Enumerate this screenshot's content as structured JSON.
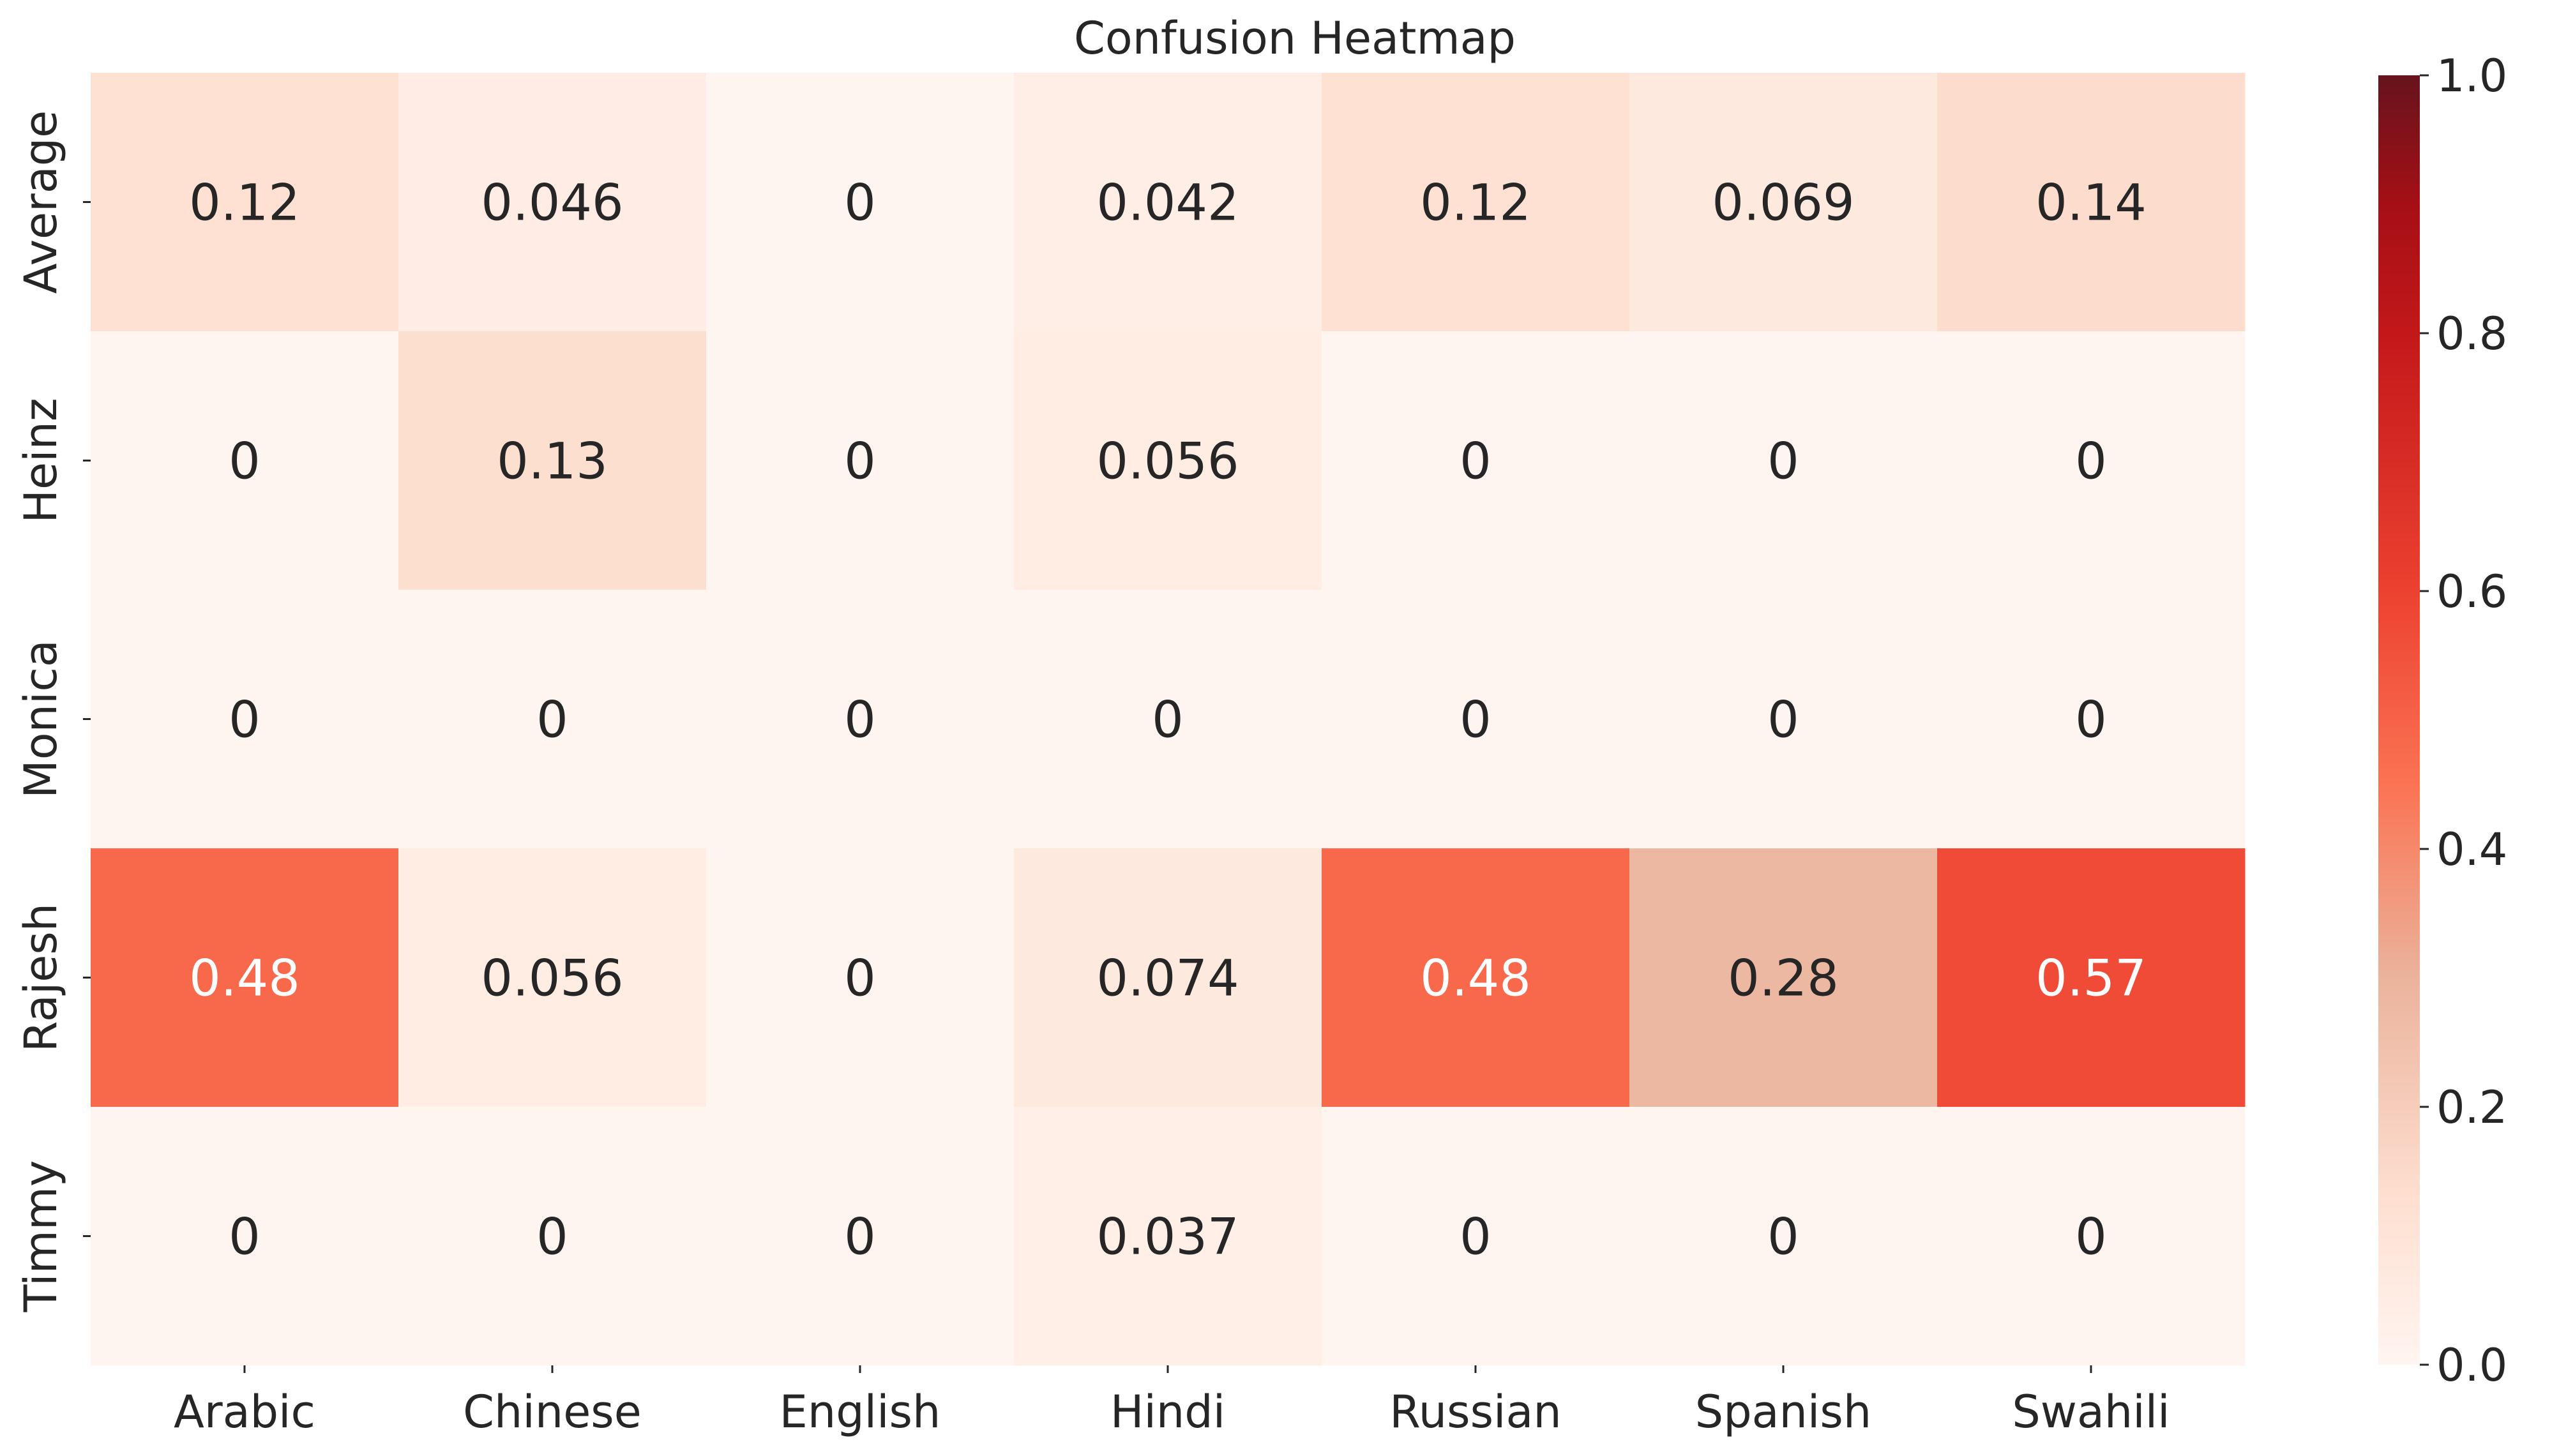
{
  "chart_data": {
    "type": "heatmap",
    "title": "Confusion Heatmap",
    "xlabel": "",
    "ylabel": "",
    "x_categories": [
      "Arabic",
      "Chinese",
      "English",
      "Hindi",
      "Russian",
      "Spanish",
      "Swahili"
    ],
    "y_categories": [
      "Average",
      "Heinz",
      "Monica",
      "Rajesh",
      "Timmy"
    ],
    "values": [
      [
        0.12,
        0.046,
        0,
        0.042,
        0.12,
        0.069,
        0.14
      ],
      [
        0,
        0.13,
        0,
        0.056,
        0,
        0,
        0
      ],
      [
        0,
        0,
        0,
        0,
        0,
        0,
        0
      ],
      [
        0.48,
        0.056,
        0,
        0.074,
        0.48,
        0.28,
        0.57
      ],
      [
        0,
        0,
        0,
        0.037,
        0,
        0,
        0
      ]
    ],
    "cell_labels": [
      [
        "0.12",
        "0.046",
        "0",
        "0.042",
        "0.12",
        "0.069",
        "0.14"
      ],
      [
        "0",
        "0.13",
        "0",
        "0.056",
        "0",
        "0",
        "0"
      ],
      [
        "0",
        "0",
        "0",
        "0",
        "0",
        "0",
        "0"
      ],
      [
        "0.48",
        "0.056",
        "0",
        "0.074",
        "0.48",
        "0.28",
        "0.57"
      ],
      [
        "0",
        "0",
        "0",
        "0.037",
        "0",
        "0",
        "0"
      ]
    ],
    "colorbar": {
      "vmin": 0.0,
      "vmax": 1.0,
      "ticks": [
        "0.0",
        "0.2",
        "0.4",
        "0.6",
        "0.8",
        "1.0"
      ],
      "tick_values": [
        0.0,
        0.2,
        0.4,
        0.6,
        0.8,
        1.0
      ],
      "colormap_stops": [
        {
          "v": 0.0,
          "color": "#fff5f0"
        },
        {
          "v": 0.125,
          "color": "#fee0d2"
        },
        {
          "v": 0.3,
          "color": "#ebb39c"
        },
        {
          "v": 0.45,
          "color": "#fb7353"
        },
        {
          "v": 0.6,
          "color": "#ec4130"
        },
        {
          "v": 0.8,
          "color": "#c2181a"
        },
        {
          "v": 0.9,
          "color": "#a50f15"
        },
        {
          "v": 1.0,
          "color": "#67131d"
        }
      ]
    },
    "grid": false,
    "text_color_dark": "#262626",
    "text_color_light": "#ffffff"
  }
}
